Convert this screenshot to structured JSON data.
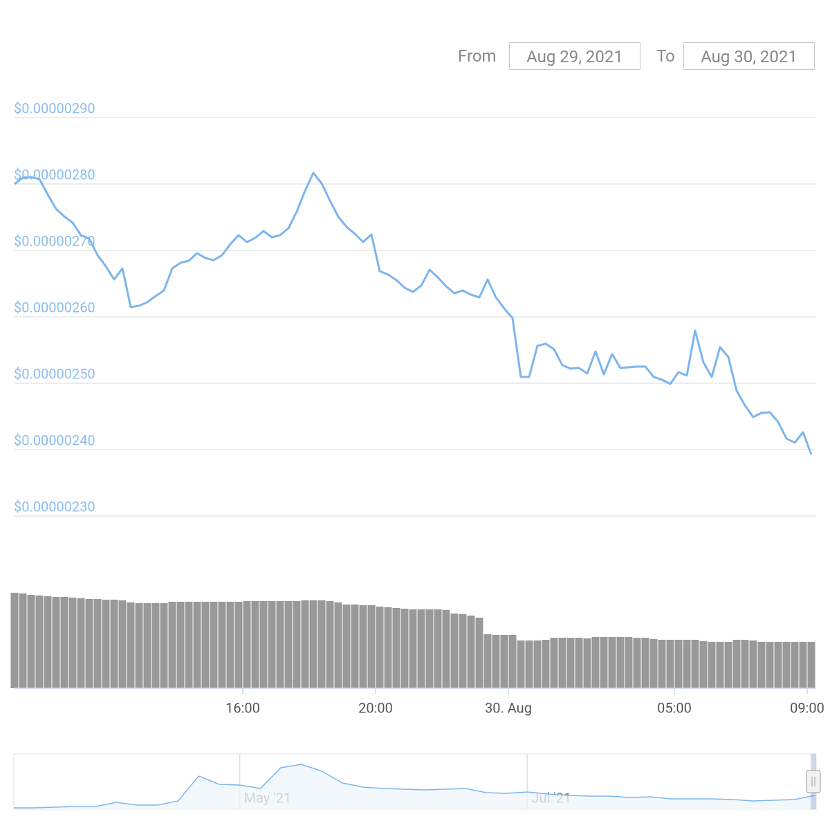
{
  "date_range": {
    "from_label": "From",
    "from": "Aug 29, 2021",
    "to_label": "To",
    "to": "Aug 30, 2021"
  },
  "chart_data": [
    {
      "type": "line",
      "x": [
        9.125,
        9.375,
        9.625,
        9.875,
        10.125,
        10.375,
        10.625,
        10.875,
        11.125,
        11.375,
        11.625,
        11.875,
        12.125,
        12.375,
        12.625,
        12.875,
        13.125,
        13.375,
        13.625,
        13.875,
        14.125,
        14.375,
        14.625,
        14.875,
        15.125,
        15.375,
        15.625,
        15.875,
        16.125,
        16.375,
        16.625,
        16.875,
        17.125,
        17.375,
        17.625,
        17.875,
        18.125,
        18.375,
        18.625,
        18.875,
        19.125,
        19.375,
        19.625,
        19.875,
        20.125,
        20.375,
        20.625,
        20.875,
        21.125,
        21.375,
        21.625,
        21.875,
        22.125,
        22.375,
        22.625,
        22.875,
        23.125,
        23.375,
        23.625,
        23.875,
        24.125,
        24.375,
        24.625,
        24.875,
        25.125,
        25.375,
        25.625,
        25.875,
        26.125,
        26.375,
        26.625,
        26.875,
        27.125,
        27.375,
        27.625,
        27.875,
        28.125,
        28.375,
        28.625,
        28.875,
        29.125,
        29.375,
        29.625,
        29.875,
        30.125,
        30.375,
        30.625,
        30.875,
        31.125,
        31.375,
        31.625,
        31.875,
        32.125,
        32.375,
        32.625,
        32.875,
        33.125
      ],
      "series": [
        {
          "color": "#7cb5ec",
          "values": [
            2.8e-06,
            2.8094e-06,
            2.8104e-06,
            2.8073e-06,
            2.7844e-06,
            2.7625e-06,
            2.751e-06,
            2.7417e-06,
            2.7229e-06,
            2.7177e-06,
            2.6927e-06,
            2.676e-06,
            2.6562e-06,
            2.6729e-06,
            2.6146e-06,
            2.6167e-06,
            2.6219e-06,
            2.6313e-06,
            2.6396e-06,
            2.6729e-06,
            2.6813e-06,
            2.6844e-06,
            2.6958e-06,
            2.6885e-06,
            2.6854e-06,
            2.6927e-06,
            2.7094e-06,
            2.7229e-06,
            2.7125e-06,
            2.7188e-06,
            2.7292e-06,
            2.7198e-06,
            2.7229e-06,
            2.7333e-06,
            2.7583e-06,
            2.7896e-06,
            2.8167e-06,
            2.801e-06,
            2.775e-06,
            2.751e-06,
            2.7354e-06,
            2.725e-06,
            2.7125e-06,
            2.724e-06,
            2.6688e-06,
            2.6635e-06,
            2.6552e-06,
            2.6438e-06,
            2.6375e-06,
            2.6469e-06,
            2.6708e-06,
            2.6594e-06,
            2.6458e-06,
            2.6354e-06,
            2.6396e-06,
            2.6333e-06,
            2.6292e-06,
            2.6562e-06,
            2.6292e-06,
            2.6125e-06,
            2.5979e-06,
            2.5094e-06,
            2.5094e-06,
            2.5562e-06,
            2.5594e-06,
            2.551e-06,
            2.5271e-06,
            2.5219e-06,
            2.5229e-06,
            2.5146e-06,
            2.5479e-06,
            2.5135e-06,
            2.5438e-06,
            2.5229e-06,
            2.524e-06,
            2.525e-06,
            2.525e-06,
            2.5094e-06,
            2.5052e-06,
            2.499e-06,
            2.5167e-06,
            2.5115e-06,
            2.5792e-06,
            2.5313e-06,
            2.5094e-06,
            2.5542e-06,
            2.5396e-06,
            2.4885e-06,
            2.4667e-06,
            2.449e-06,
            2.4552e-06,
            2.4562e-06,
            2.4417e-06,
            2.4167e-06,
            2.4104e-06,
            2.426e-06,
            2.3927e-06
          ]
        },
        {
          "type": "bar",
          "axis": "y2",
          "color": "#999999",
          "values": [
            138,
            137,
            135,
            134,
            133,
            132,
            132,
            131,
            130,
            129,
            129,
            128,
            128,
            127,
            124,
            123,
            123,
            123,
            123,
            125,
            125,
            125,
            125,
            125,
            125,
            125,
            125,
            125,
            126,
            126,
            126,
            126,
            126,
            126,
            126,
            127,
            127,
            127,
            126,
            124,
            121,
            121,
            120,
            120,
            118,
            117,
            116,
            115,
            114,
            114,
            114,
            114,
            113,
            108,
            107,
            105,
            102,
            78,
            77,
            77,
            77,
            69,
            69,
            69,
            70,
            73,
            73,
            73,
            73,
            72,
            74,
            74,
            74,
            74,
            74,
            73,
            73,
            71,
            70,
            70,
            70,
            70,
            70,
            68,
            67,
            67,
            67,
            70,
            70,
            69,
            67,
            67,
            67,
            67,
            67,
            67,
            67
          ]
        }
      ],
      "xlim": [
        9.104,
        33.271
      ],
      "xticks": [
        {
          "value": 16,
          "label": "16:00"
        },
        {
          "value": 20,
          "label": "20:00"
        },
        {
          "value": 24,
          "label": "30. Aug"
        },
        {
          "value": 29,
          "label": "05:00"
        },
        {
          "value": 33,
          "label": "09:00"
        }
      ],
      "ylim": [
        2.3e-06,
        2.9e-06
      ],
      "yticks": [
        {
          "value": 2.9e-06,
          "label": "$0.00000290"
        },
        {
          "value": 2.8e-06,
          "label": "$0.00000280"
        },
        {
          "value": 2.7e-06,
          "label": "$0.00000270"
        },
        {
          "value": 2.6e-06,
          "label": "$0.00000260"
        },
        {
          "value": 2.5e-06,
          "label": "$0.00000250"
        },
        {
          "value": 2.4e-06,
          "label": "$0.00000240"
        },
        {
          "value": 2.3e-06,
          "label": "$0.00000230"
        }
      ],
      "y2lim": [
        0,
        140
      ],
      "grid": true
    },
    {
      "type": "line",
      "categories": [
        null,
        null,
        null,
        null,
        null,
        null,
        null,
        null,
        null,
        null,
        null,
        "May '21",
        null,
        null,
        null,
        null,
        null,
        null,
        null,
        null,
        null,
        null,
        null,
        null,
        null,
        "Jul '21",
        null,
        null,
        null,
        null,
        null,
        null,
        null,
        null,
        null,
        null,
        null,
        null,
        null,
        null
      ],
      "values": [
        2.4e-07,
        2.4e-07,
        3.6e-07,
        4.8e-07,
        4.8e-07,
        1.2e-06,
        7.2e-07,
        7.2e-07,
        1.44e-06,
        5.76e-06,
        4.32e-06,
        4.2e-06,
        3.6e-06,
        7.2e-06,
        7.8e-06,
        6.6e-06,
        4.56e-06,
        3.84e-06,
        3.6e-06,
        3.48e-06,
        3.36e-06,
        3.48e-06,
        3.6e-06,
        2.88e-06,
        2.76e-06,
        3e-06,
        2.64e-06,
        2.4e-06,
        2.28e-06,
        2.28e-06,
        2.04e-06,
        2.16e-06,
        1.8e-06,
        1.8e-06,
        1.8e-06,
        1.68e-06,
        1.44e-06,
        1.56e-06,
        1.68e-06,
        2.4e-06
      ],
      "color": "#7cb5ec",
      "ylim": [
        0,
        9.6e-06
      ]
    }
  ]
}
